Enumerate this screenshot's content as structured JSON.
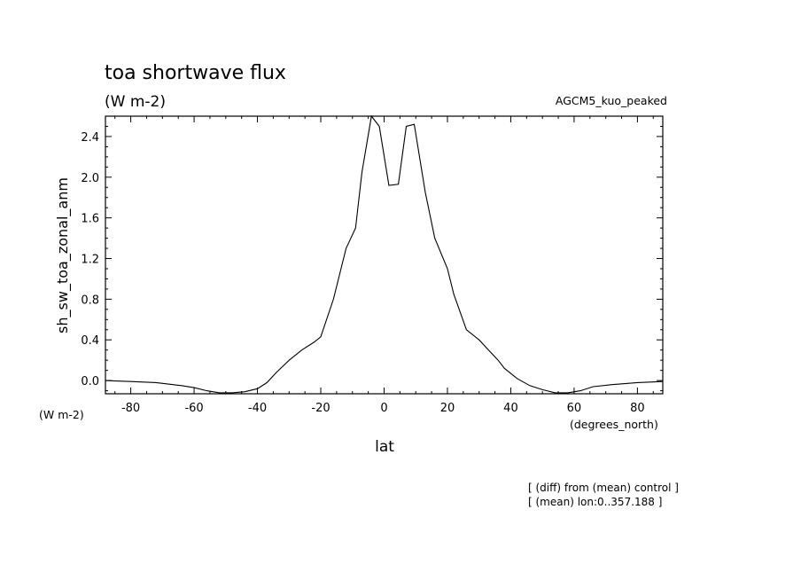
{
  "chart_data": {
    "type": "line",
    "title": "toa shortwave flux",
    "units": "(W m-2)",
    "model_label": "AGCM5_kuo_peaked",
    "ylabel": "sh_sw_toa_zonal_anm",
    "y_units_label": "(W m-2)",
    "xlabel": "lat",
    "x_units_label": "(degrees_north)",
    "xlim": [
      -88,
      88
    ],
    "ylim": [
      -0.13,
      2.6
    ],
    "x_ticks": [
      -80,
      -60,
      -40,
      -20,
      0,
      20,
      40,
      60,
      80
    ],
    "y_ticks": [
      0.0,
      0.4,
      0.8,
      1.2,
      1.6,
      2.0,
      2.4
    ],
    "y_tick_labels": [
      "0.0",
      "0.4",
      "0.8",
      "1.2",
      "1.6",
      "2.0",
      "2.4"
    ],
    "grid": false,
    "series": [
      {
        "x": [
          -88,
          -80,
          -72,
          -64,
          -60,
          -56,
          -52,
          -48,
          -44,
          -40,
          -37,
          -34,
          -30,
          -26,
          -22,
          -20,
          -16,
          -12,
          -9,
          -7,
          -4,
          -1.5,
          1.5,
          4.5,
          7,
          9.5,
          13,
          16,
          20,
          22,
          26,
          30,
          33,
          36,
          38,
          42,
          46,
          50,
          54,
          58,
          62,
          66,
          72,
          80,
          88
        ],
        "y": [
          0.0,
          -0.01,
          -0.02,
          -0.05,
          -0.07,
          -0.1,
          -0.12,
          -0.12,
          -0.11,
          -0.08,
          -0.02,
          0.08,
          0.2,
          0.3,
          0.38,
          0.43,
          0.8,
          1.3,
          1.5,
          2.05,
          2.6,
          2.5,
          1.92,
          1.93,
          2.5,
          2.52,
          1.85,
          1.4,
          1.1,
          0.85,
          0.5,
          0.4,
          0.3,
          0.2,
          0.12,
          0.02,
          -0.05,
          -0.09,
          -0.12,
          -0.12,
          -0.1,
          -0.06,
          -0.04,
          -0.02,
          -0.01
        ]
      }
    ],
    "notes": [
      "[ (diff) from (mean) control ]",
      "[ (mean) lon:0..357.188 ]"
    ]
  }
}
